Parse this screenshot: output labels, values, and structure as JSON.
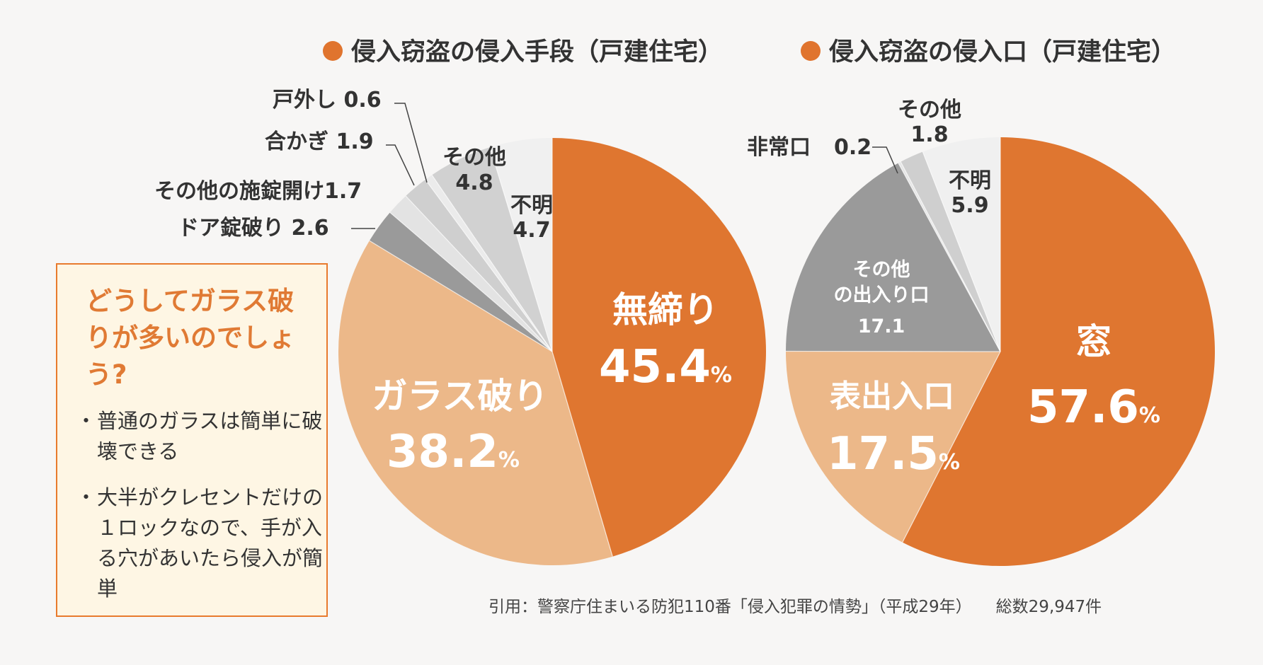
{
  "chart_data": [
    {
      "type": "pie",
      "legend": "侵入窃盗の侵入手段（戸建住宅）",
      "legend_color": "#e0742e",
      "slices": [
        {
          "label": "無締り",
          "value": 45.4,
          "display": "45.4",
          "unit": "%",
          "color": "#df7630"
        },
        {
          "label": "ガラス破り",
          "value": 38.2,
          "display": "38.2",
          "unit": "%",
          "color": "#ecb889"
        },
        {
          "label": "ドア錠破り",
          "value": 2.6,
          "display": "2.6",
          "color": "#9a9a9a"
        },
        {
          "label": "その他の施錠開け",
          "value": 1.7,
          "display": "1.7",
          "color": "#e3e3e3"
        },
        {
          "label": "合かぎ",
          "value": 1.9,
          "display": "1.9",
          "color": "#cfcfcf"
        },
        {
          "label": "戸外し",
          "value": 0.6,
          "display": "0.6",
          "color": "#ebebeb"
        },
        {
          "label": "その他",
          "value": 4.8,
          "display": "4.8",
          "color": "#d1d1d1"
        },
        {
          "label": "不明",
          "value": 4.7,
          "display": "4.7",
          "color": "#f0f0f0"
        }
      ]
    },
    {
      "type": "pie",
      "legend": "侵入窃盗の侵入口（戸建住宅）",
      "legend_color": "#e0742e",
      "slices": [
        {
          "label": "窓",
          "value": 57.6,
          "display": "57.6",
          "unit": "%",
          "color": "#df7630"
        },
        {
          "label": "表出入口",
          "value": 17.5,
          "display": "17.5",
          "unit": "%",
          "color": "#ecb889"
        },
        {
          "label": "その他の出入り口",
          "value": 17.1,
          "display": "17.1",
          "color": "#9a9a9a"
        },
        {
          "label": "非常口",
          "value": 0.2,
          "display": "0.2",
          "color": "#e6e6e6"
        },
        {
          "label": "その他",
          "value": 1.8,
          "display": "1.8",
          "color": "#cfcfcf"
        },
        {
          "label": "不明",
          "value": 5.9,
          "display": "5.9",
          "color": "#f0f0f0"
        }
      ]
    }
  ],
  "callout": {
    "title": "どうしてガラス破りが多いのでしょう?",
    "items": [
      "普通のガラスは簡単に破壊できる",
      "大半がクレセントだけの１ロックなので、手が入る穴があいたら侵入が簡単"
    ],
    "accent_color": "#e07a34"
  },
  "source": {
    "citation": "引用：警察庁住まいる防犯110番「侵入犯罪の情勢」（平成29年）",
    "total": "総数29,947件"
  }
}
